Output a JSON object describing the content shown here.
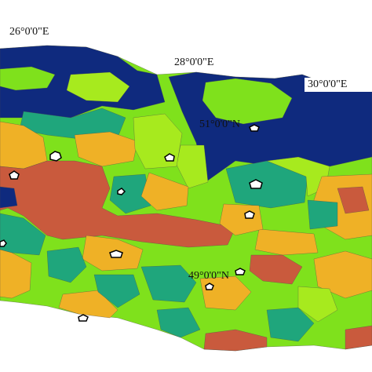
{
  "labels": {
    "lon": [
      "26°0'0\"E",
      "28°0'0\"E",
      "30°0'0\"E"
    ],
    "lat": [
      "51°0'0\"N",
      "49°0'0\"N"
    ]
  }
}
